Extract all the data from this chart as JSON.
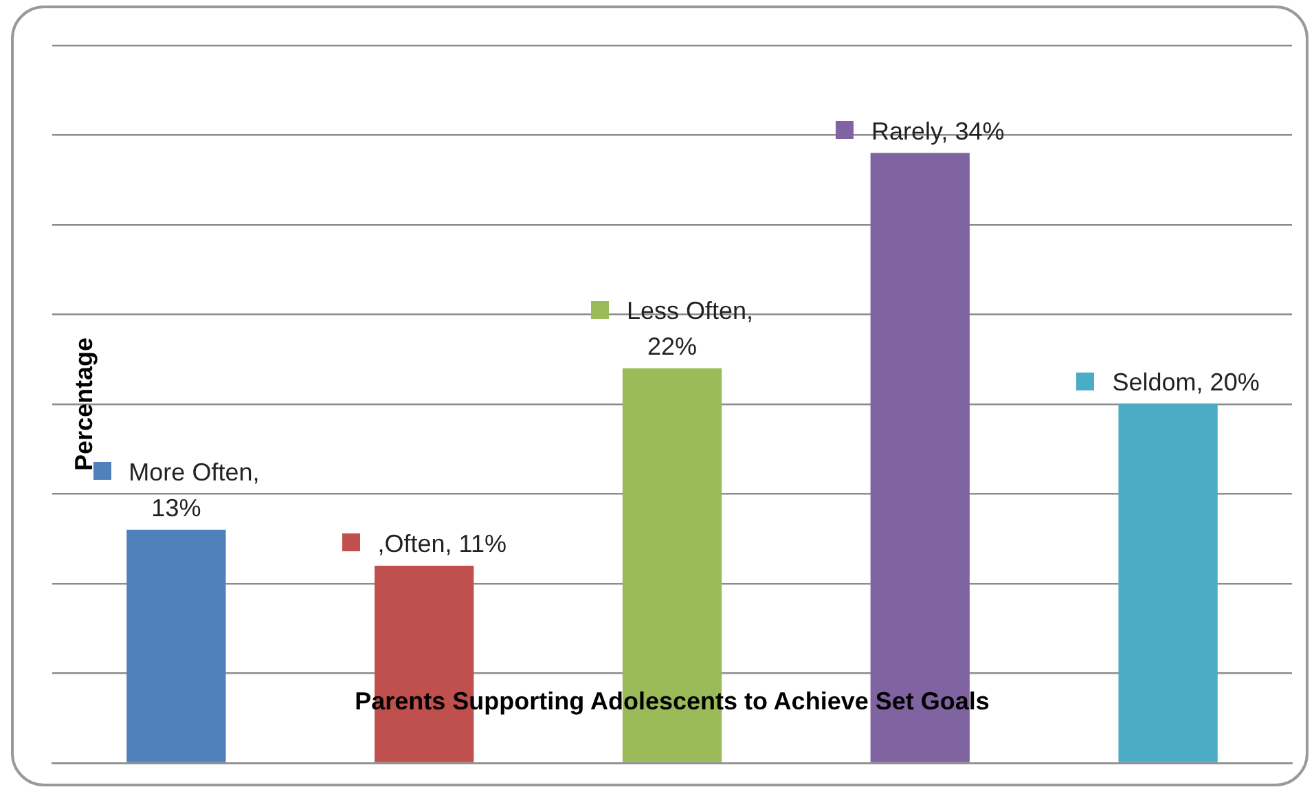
{
  "chart_data": {
    "type": "bar",
    "xlabel": "Parents Supporting Adolescents to Achieve Set Goals",
    "ylabel": "Percentage",
    "categories": [
      null,
      null,
      null,
      null,
      null
    ],
    "values": [
      13,
      11,
      22,
      34,
      20
    ],
    "colors": [
      "#4f81bd",
      "#c0504d",
      "#9bbb59",
      "#8064a2",
      "#4bacc6"
    ],
    "value_labels": [
      "More Often, 13%",
      ",Often, 11%",
      "Less Often, 22%",
      "Rarely, 34%",
      "Seldom, 20%"
    ],
    "ylim": [
      0,
      40
    ],
    "yticks": [
      0,
      5,
      10,
      15,
      20,
      25,
      30,
      35,
      40
    ],
    "grid": "y",
    "tick_labels": false,
    "legend": false
  }
}
